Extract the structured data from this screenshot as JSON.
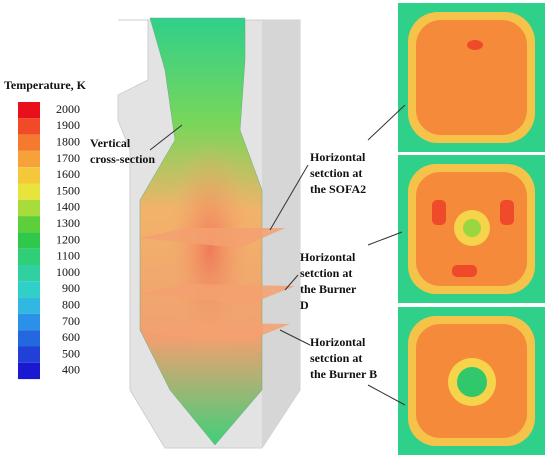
{
  "colorbar": {
    "title": "Temperature, K",
    "ticks": [
      2000,
      1900,
      1800,
      1700,
      1600,
      1500,
      1400,
      1300,
      1200,
      1100,
      1000,
      900,
      800,
      700,
      600,
      500,
      400
    ]
  },
  "labels": {
    "vertical": [
      "Vertical",
      "cross-section"
    ],
    "sofa2": [
      "Horizontal",
      "setction at",
      "the SOFA2"
    ],
    "burner_d": [
      "Horizontal",
      "setction at",
      "the Burner",
      "D"
    ],
    "burner_b": [
      "Horizontal",
      "setction at",
      "the Burner B"
    ]
  }
}
